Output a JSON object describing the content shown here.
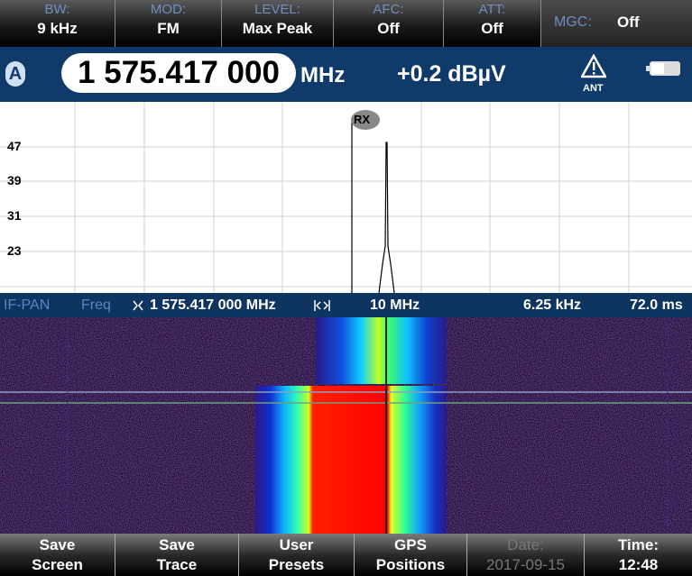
{
  "top_bar": {
    "items": [
      {
        "label": "BW:",
        "value": "9 kHz"
      },
      {
        "label": "MOD:",
        "value": "FM"
      },
      {
        "label": "LEVEL:",
        "value": "Max Peak"
      },
      {
        "label": "AFC:",
        "value": "Off"
      },
      {
        "label": "ATT:",
        "value": "Off"
      },
      {
        "label": "MGC:",
        "value": "Off"
      }
    ]
  },
  "freq_bar": {
    "channel": "A",
    "frequency": "1 575.417 000",
    "unit": "MHz",
    "level": "+0.2 dBµV",
    "warning": "ANT"
  },
  "spectrum": {
    "y_labels": [
      "47",
      "39",
      "31",
      "23"
    ],
    "marker": "RX"
  },
  "info_bar": {
    "mode": "IF-PAN",
    "param": "Freq",
    "center": "1 575.417 000 MHz",
    "span": "10 MHz",
    "resolution": "6.25 kHz",
    "time": "72.0 ms"
  },
  "softkeys": [
    {
      "line1": "Save",
      "line2": "Screen"
    },
    {
      "line1": "Save",
      "line2": "Trace"
    },
    {
      "line1": "User",
      "line2": "Presets"
    },
    {
      "line1": "GPS",
      "line2": "Positions"
    },
    {
      "line1": "Date:",
      "line2": "2017-09-15"
    },
    {
      "line1": "Time:",
      "line2": "12:48"
    }
  ]
}
